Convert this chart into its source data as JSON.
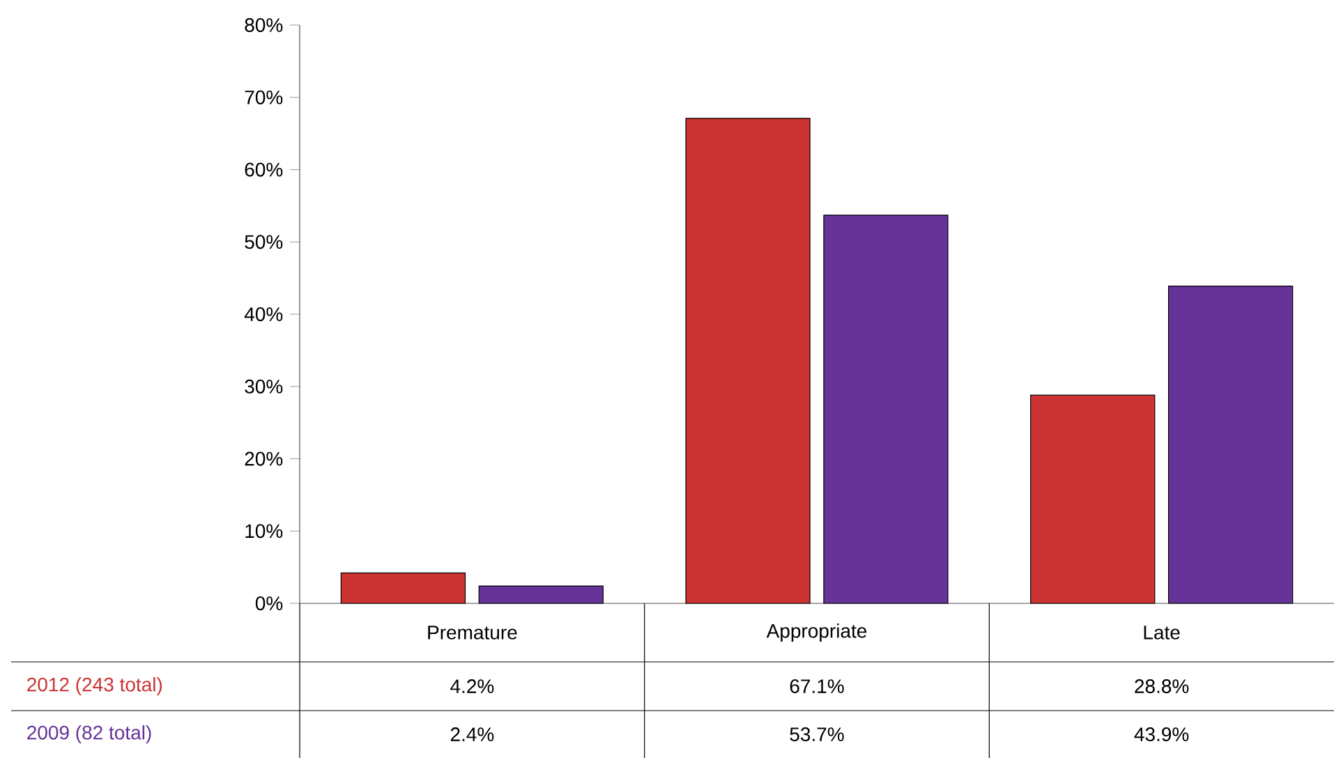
{
  "chart_data": {
    "type": "bar",
    "categories": [
      "Premature",
      "Appropriate",
      "Late"
    ],
    "series": [
      {
        "name": "2012 (243 total)",
        "color": "#cc3333",
        "values": [
          4.2,
          67.1,
          28.8
        ],
        "value_labels": [
          "4.2%",
          "67.1%",
          "28.8%"
        ]
      },
      {
        "name": "2009 (82 total)",
        "color": "#663399",
        "values": [
          2.4,
          53.7,
          43.9
        ],
        "value_labels": [
          "2.4%",
          "53.7%",
          "43.9%"
        ]
      }
    ],
    "ylim": [
      0,
      80
    ],
    "yticks": [
      {
        "value": 0,
        "label": "0%"
      },
      {
        "value": 10,
        "label": "10%"
      },
      {
        "value": 20,
        "label": "20%"
      },
      {
        "value": 30,
        "label": "30%"
      },
      {
        "value": 40,
        "label": "40%"
      },
      {
        "value": 50,
        "label": "50%"
      },
      {
        "value": 60,
        "label": "60%"
      },
      {
        "value": 70,
        "label": "70%"
      },
      {
        "value": 80,
        "label": "80%"
      }
    ]
  }
}
